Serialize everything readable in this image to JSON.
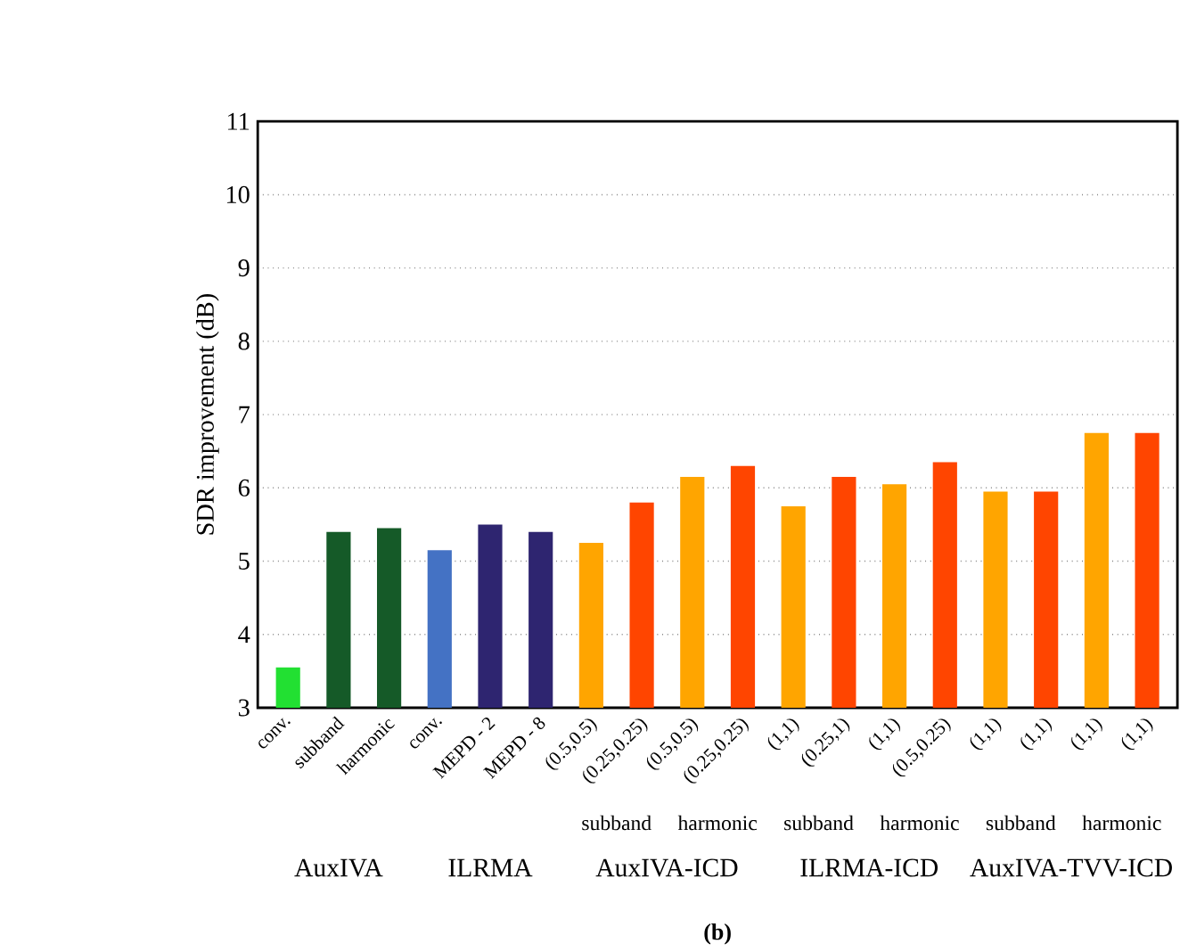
{
  "chart_data": {
    "type": "bar",
    "ylabel": "SDR improvement (dB)",
    "categories": [
      "conv.",
      "subband",
      "harmonic",
      "conv.",
      "MEPD - 2",
      "MEPD - 8",
      "(0.5,0.5)",
      "(0.25,0.25)",
      "(0.5,0.5)",
      "(0.25,0.25)",
      "(1,1)",
      "(0.25,1)",
      "(1,1)",
      "(0.5,0.25)",
      "(1,1)",
      "(1,1)",
      "(1,1)",
      "(1,1)"
    ],
    "values": [
      3.55,
      5.4,
      5.45,
      5.15,
      5.5,
      5.4,
      5.25,
      5.8,
      6.15,
      6.3,
      5.75,
      6.15,
      6.05,
      6.35,
      5.95,
      5.95,
      6.75,
      6.75
    ],
    "colors": [
      "#22e032",
      "#155a28",
      "#155a28",
      "#4472c4",
      "#2e2570",
      "#2e2570",
      "#ffa500",
      "#ff4500",
      "#ffa500",
      "#ff4500",
      "#ffa500",
      "#ff4500",
      "#ffa500",
      "#ff4500",
      "#ffa500",
      "#ff4500",
      "#ffa500",
      "#ff4500"
    ],
    "ylim": [
      3,
      11
    ],
    "yticks": [
      3,
      4,
      5,
      6,
      7,
      8,
      9,
      10,
      11
    ],
    "grid": "y",
    "annotations": [
      "subband",
      "harmonic",
      "subband",
      "harmonic",
      "subband",
      "harmonic",
      "AuxIVA",
      "ILRMA",
      "AuxIVA-ICD",
      "ILRMA-ICD",
      "AuxIVA-TVV-ICD",
      "(b)"
    ]
  }
}
